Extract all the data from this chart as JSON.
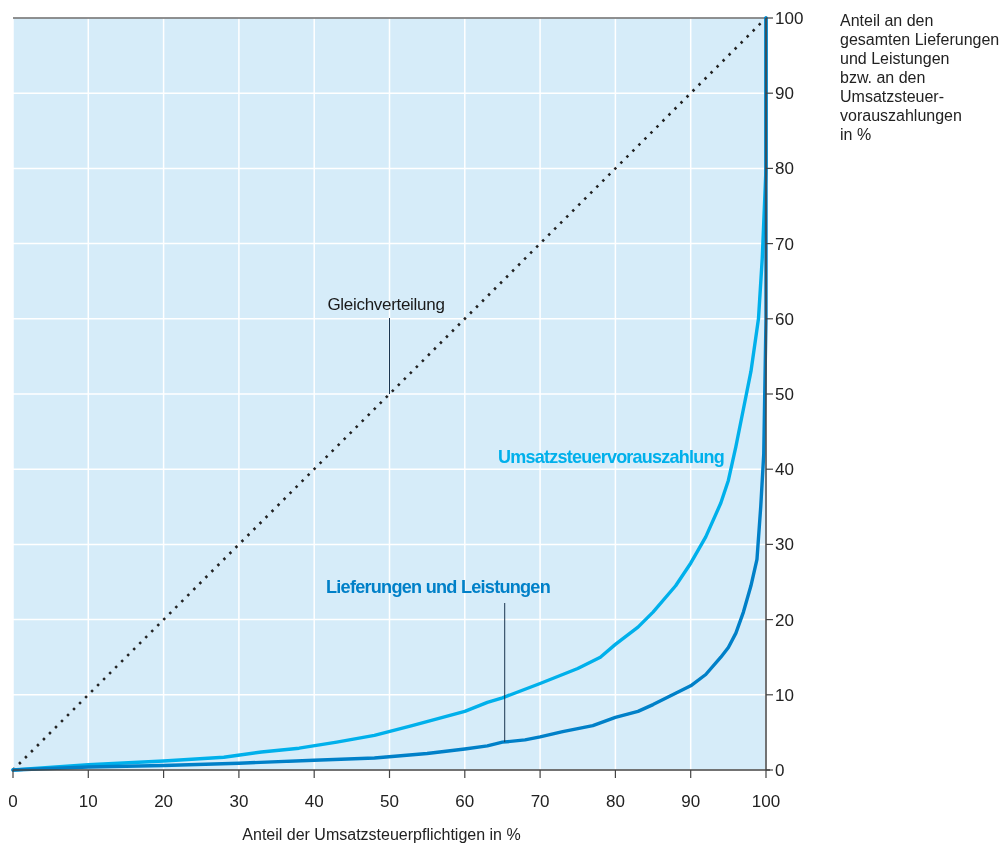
{
  "chart_data": {
    "type": "line",
    "xlabel": "Anteil der Umsatzsteuerpflichtigen in %",
    "ylabel": "Anteil an den\ngesamten Lieferungen\nund Leistungen\nbzw. an den\nUmsatzsteuer-\nvorauszahlungen\nin %",
    "xlim": [
      0,
      100
    ],
    "ylim": [
      0,
      100
    ],
    "xticks": [
      0,
      10,
      20,
      30,
      40,
      50,
      60,
      70,
      80,
      90,
      100
    ],
    "yticks": [
      0,
      10,
      20,
      30,
      40,
      50,
      60,
      70,
      80,
      90,
      100
    ],
    "grid": true,
    "marker": "none",
    "series": [
      {
        "name": "Gleichverteilung",
        "color": "#222222",
        "line_style": "dotted",
        "x": [
          0,
          100
        ],
        "values": [
          0,
          100
        ]
      },
      {
        "name": "Umsatzsteuervorauszahlung",
        "color": "#00b0eb",
        "x": [
          0,
          10,
          20,
          28,
          33,
          38,
          43,
          48,
          53,
          60,
          63,
          65,
          70,
          75,
          78,
          80,
          83,
          85,
          88,
          90,
          92,
          94,
          95,
          96,
          97,
          98,
          99,
          99.5,
          100,
          100
        ],
        "values": [
          0,
          0.7,
          1.2,
          1.7,
          2.4,
          2.9,
          3.7,
          4.6,
          5.9,
          7.8,
          9,
          9.6,
          11.5,
          13.5,
          15,
          16.7,
          19,
          21,
          24.5,
          27.5,
          31,
          35.5,
          38.5,
          43,
          48,
          53,
          60,
          68,
          80,
          100
        ]
      },
      {
        "name": "Lieferungen und Leistungen",
        "color": "#0080c8",
        "x": [
          0,
          10,
          20,
          30,
          40,
          48,
          55,
          60,
          63,
          65,
          68,
          70,
          73,
          75,
          77,
          80,
          83,
          85,
          88,
          90,
          92,
          94,
          95,
          96,
          97,
          98,
          98.8,
          99.3,
          99.7,
          100,
          100
        ],
        "values": [
          0,
          0.4,
          0.6,
          0.9,
          1.3,
          1.6,
          2.2,
          2.8,
          3.2,
          3.7,
          4,
          4.4,
          5.1,
          5.5,
          5.9,
          7,
          7.8,
          8.7,
          10.2,
          11.2,
          12.7,
          15,
          16.3,
          18.2,
          21,
          24.5,
          28,
          35,
          42,
          60,
          100
        ]
      }
    ]
  }
}
